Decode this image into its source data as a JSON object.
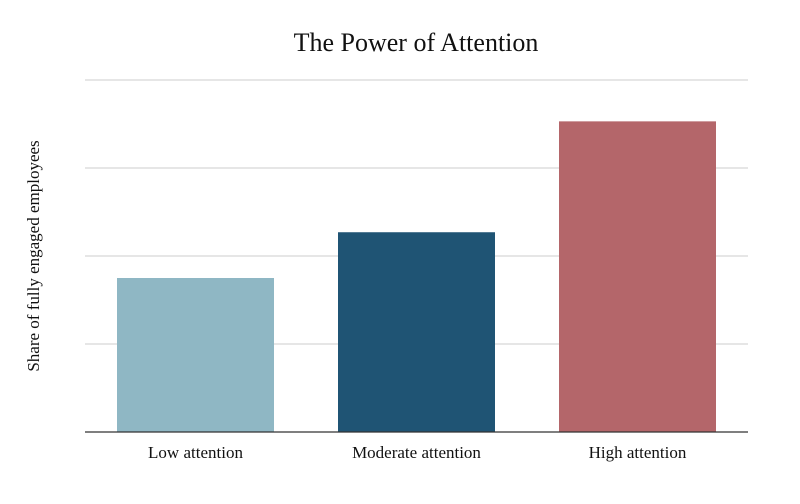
{
  "chart_data": {
    "type": "bar",
    "title": "The Power of Attention",
    "xlabel": "",
    "ylabel": "Share of fully engaged employees",
    "categories": [
      "Low attention",
      "Moderate attention",
      "High attention"
    ],
    "values": [
      1.75,
      2.27,
      3.53
    ],
    "ylim": [
      0,
      4
    ],
    "yticks": [
      0,
      1,
      2,
      3,
      4
    ],
    "show_y_tick_labels": false,
    "grid": true,
    "colors": [
      "#8fb7c4",
      "#1f5474",
      "#b4666a"
    ]
  }
}
